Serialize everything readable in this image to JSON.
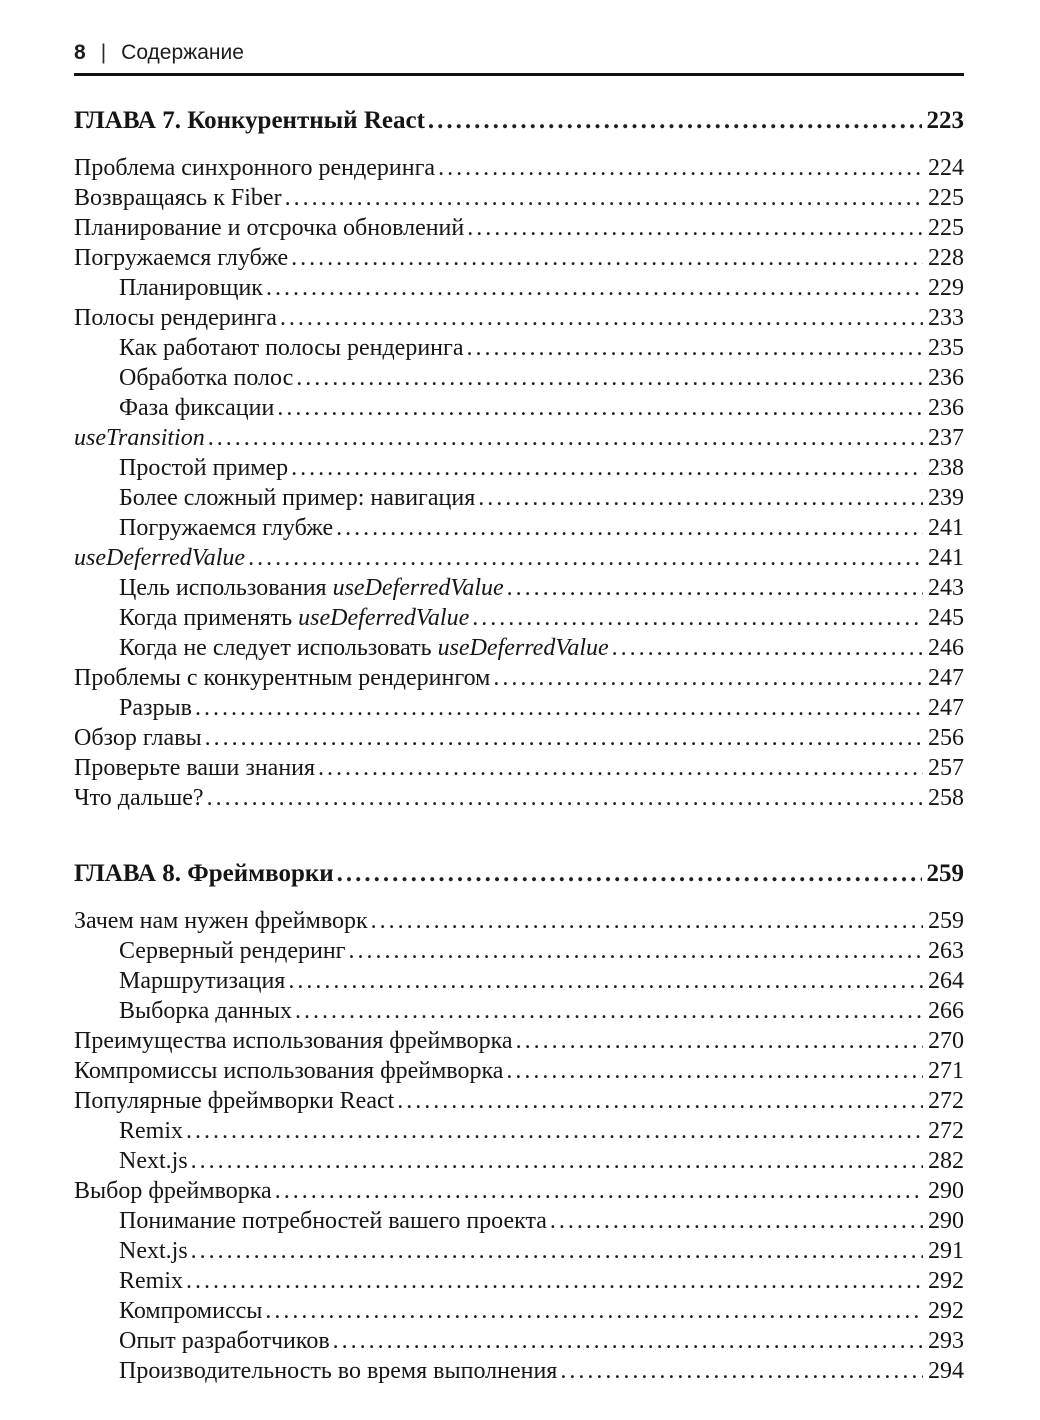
{
  "header": {
    "page_number": "8",
    "separator": "|",
    "title": "Содержание"
  },
  "colors": {
    "text": "#151515",
    "rule": "#121212",
    "background": "#ffffff"
  },
  "toc": {
    "sections": [
      {
        "title": "ГЛАВА 7. Конкурентный React",
        "page": "223",
        "entries": [
          {
            "indent": 0,
            "page": "224",
            "parts": [
              {
                "text": "Проблема синхронного рендеринга",
                "italic": false
              }
            ]
          },
          {
            "indent": 0,
            "page": "225",
            "parts": [
              {
                "text": "Возвращаясь к Fiber",
                "italic": false
              }
            ]
          },
          {
            "indent": 0,
            "page": "225",
            "parts": [
              {
                "text": "Планирование и отсрочка обновлений",
                "italic": false
              }
            ]
          },
          {
            "indent": 0,
            "page": "228",
            "parts": [
              {
                "text": "Погружаемся глубже",
                "italic": false
              }
            ]
          },
          {
            "indent": 1,
            "page": "229",
            "parts": [
              {
                "text": "Планировщик",
                "italic": false
              }
            ]
          },
          {
            "indent": 0,
            "page": "233",
            "parts": [
              {
                "text": "Полосы рендеринга",
                "italic": false
              }
            ]
          },
          {
            "indent": 1,
            "page": "235",
            "parts": [
              {
                "text": "Как работают полосы рендеринга",
                "italic": false
              }
            ]
          },
          {
            "indent": 1,
            "page": "236",
            "parts": [
              {
                "text": "Обработка полос",
                "italic": false
              }
            ]
          },
          {
            "indent": 1,
            "page": "236",
            "parts": [
              {
                "text": "Фаза фиксации",
                "italic": false
              }
            ]
          },
          {
            "indent": 0,
            "page": "237",
            "parts": [
              {
                "text": "useTransition",
                "italic": true
              }
            ]
          },
          {
            "indent": 1,
            "page": "238",
            "parts": [
              {
                "text": "Простой пример",
                "italic": false
              }
            ]
          },
          {
            "indent": 1,
            "page": "239",
            "parts": [
              {
                "text": "Более сложный пример: навигация",
                "italic": false
              }
            ]
          },
          {
            "indent": 1,
            "page": "241",
            "parts": [
              {
                "text": "Погружаемся глубже",
                "italic": false
              }
            ]
          },
          {
            "indent": 0,
            "page": "241",
            "parts": [
              {
                "text": "useDeferredValue",
                "italic": true
              }
            ]
          },
          {
            "indent": 1,
            "page": "243",
            "parts": [
              {
                "text": "Цель использования ",
                "italic": false
              },
              {
                "text": "useDeferredValue",
                "italic": true
              }
            ]
          },
          {
            "indent": 1,
            "page": "245",
            "parts": [
              {
                "text": "Когда применять ",
                "italic": false
              },
              {
                "text": "useDeferredValue",
                "italic": true
              }
            ]
          },
          {
            "indent": 1,
            "page": "246",
            "parts": [
              {
                "text": "Когда не следует использовать ",
                "italic": false
              },
              {
                "text": "useDeferredValue",
                "italic": true
              }
            ]
          },
          {
            "indent": 0,
            "page": "247",
            "parts": [
              {
                "text": "Проблемы с конкурентным рендерингом",
                "italic": false
              }
            ]
          },
          {
            "indent": 1,
            "page": "247",
            "parts": [
              {
                "text": "Разрыв",
                "italic": false
              }
            ]
          },
          {
            "indent": 0,
            "page": "256",
            "parts": [
              {
                "text": "Обзор главы",
                "italic": false
              }
            ]
          },
          {
            "indent": 0,
            "page": "257",
            "parts": [
              {
                "text": "Проверьте ваши знания",
                "italic": false
              }
            ]
          },
          {
            "indent": 0,
            "page": "258",
            "parts": [
              {
                "text": "Что дальше?",
                "italic": false
              }
            ]
          }
        ]
      },
      {
        "title": "ГЛАВА 8. Фреймворки",
        "page": "259",
        "entries": [
          {
            "indent": 0,
            "page": "259",
            "parts": [
              {
                "text": "Зачем нам нужен фреймворк",
                "italic": false
              }
            ]
          },
          {
            "indent": 1,
            "page": "263",
            "parts": [
              {
                "text": "Серверный рендеринг",
                "italic": false
              }
            ]
          },
          {
            "indent": 1,
            "page": "264",
            "parts": [
              {
                "text": "Маршрутизация",
                "italic": false
              }
            ]
          },
          {
            "indent": 1,
            "page": "266",
            "parts": [
              {
                "text": "Выборка данных",
                "italic": false
              }
            ]
          },
          {
            "indent": 0,
            "page": "270",
            "parts": [
              {
                "text": "Преимущества использования фреймворка",
                "italic": false
              }
            ]
          },
          {
            "indent": 0,
            "page": "271",
            "parts": [
              {
                "text": "Компромиссы использования фреймворка",
                "italic": false
              }
            ]
          },
          {
            "indent": 0,
            "page": "272",
            "parts": [
              {
                "text": "Популярные фреймворки React",
                "italic": false
              }
            ]
          },
          {
            "indent": 1,
            "page": "272",
            "parts": [
              {
                "text": "Remix",
                "italic": false
              }
            ]
          },
          {
            "indent": 1,
            "page": "282",
            "parts": [
              {
                "text": "Next.js",
                "italic": false
              }
            ]
          },
          {
            "indent": 0,
            "page": "290",
            "parts": [
              {
                "text": "Выбор фреймворка",
                "italic": false
              }
            ]
          },
          {
            "indent": 1,
            "page": "290",
            "parts": [
              {
                "text": "Понимание потребностей вашего проекта",
                "italic": false
              }
            ]
          },
          {
            "indent": 1,
            "page": "291",
            "parts": [
              {
                "text": "Next.js",
                "italic": false
              }
            ]
          },
          {
            "indent": 1,
            "page": "292",
            "parts": [
              {
                "text": "Remix",
                "italic": false
              }
            ]
          },
          {
            "indent": 1,
            "page": "292",
            "parts": [
              {
                "text": "Компромиссы",
                "italic": false
              }
            ]
          },
          {
            "indent": 1,
            "page": "293",
            "parts": [
              {
                "text": "Опыт разработчиков",
                "italic": false
              }
            ]
          },
          {
            "indent": 1,
            "page": "294",
            "parts": [
              {
                "text": "Производительность во время выполнения",
                "italic": false
              }
            ]
          }
        ]
      }
    ]
  }
}
